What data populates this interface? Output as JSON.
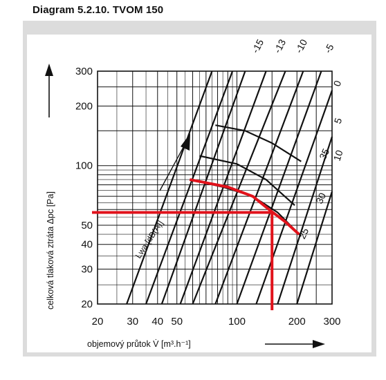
{
  "title": "Diagram 5.2.10.  TVOM 150",
  "colors": {
    "frame_bg": "#dcdcdc",
    "plot_bg": "#ffffff",
    "grid": "#111111",
    "curve": "#111111",
    "highlight": "#e1121b"
  },
  "chart_data": {
    "type": "line",
    "xlabel": "objemový průtok V̇ [m³.h⁻¹]",
    "ylabel": "celková tlaková ztráta Δpc [Pa]",
    "xscale": "log",
    "yscale": "log",
    "xlim": [
      20,
      300
    ],
    "ylim": [
      20,
      300
    ],
    "xticks": [
      20,
      30,
      40,
      50,
      100,
      200,
      300
    ],
    "yticks": [
      20,
      30,
      40,
      50,
      100,
      200,
      300
    ],
    "grid": true,
    "lines_label": "Lwa [dB(A)]",
    "damper_labels": [
      "-15",
      "-13",
      "-10",
      "-5",
      "0",
      "5",
      "10",
      "35",
      "30",
      "25"
    ],
    "damper_curves": [
      {
        "x1": 28,
        "y1": 20,
        "x2": 75,
        "y2": 300
      },
      {
        "x1": 35,
        "y1": 20,
        "x2": 95,
        "y2": 300
      },
      {
        "x1": 42,
        "y1": 20,
        "x2": 110,
        "y2": 300
      },
      {
        "x1": 52,
        "y1": 20,
        "x2": 140,
        "y2": 300
      },
      {
        "x1": 60,
        "y1": 20,
        "x2": 175,
        "y2": 300
      },
      {
        "x1": 78,
        "y1": 20,
        "x2": 215,
        "y2": 300
      },
      {
        "x1": 100,
        "y1": 20,
        "x2": 265,
        "y2": 300
      },
      {
        "x1": 125,
        "y1": 20,
        "x2": 300,
        "y2": 240
      },
      {
        "x1": 160,
        "y1": 20,
        "x2": 300,
        "y2": 140
      },
      {
        "x1": 200,
        "y1": 20,
        "x2": 300,
        "y2": 74
      }
    ],
    "noise_curves": [
      {
        "label": "35",
        "points": [
          [
            78,
            160
          ],
          [
            110,
            150
          ],
          [
            150,
            130
          ],
          [
            210,
            105
          ]
        ]
      },
      {
        "label": "30",
        "points": [
          [
            65,
            112
          ],
          [
            100,
            102
          ],
          [
            140,
            85
          ],
          [
            195,
            63
          ]
        ]
      },
      {
        "label": "25",
        "points": [
          [
            58,
            85
          ],
          [
            85,
            78
          ],
          [
            120,
            70
          ],
          [
            160,
            58
          ],
          [
            210,
            44
          ]
        ]
      }
    ],
    "highlight": {
      "curve": [
        [
          58,
          85
        ],
        [
          90,
          78
        ],
        [
          120,
          70
        ],
        [
          145,
          60
        ],
        [
          175,
          52
        ],
        [
          205,
          45
        ]
      ],
      "operating_point": {
        "x": 150,
        "y": 58
      }
    }
  }
}
